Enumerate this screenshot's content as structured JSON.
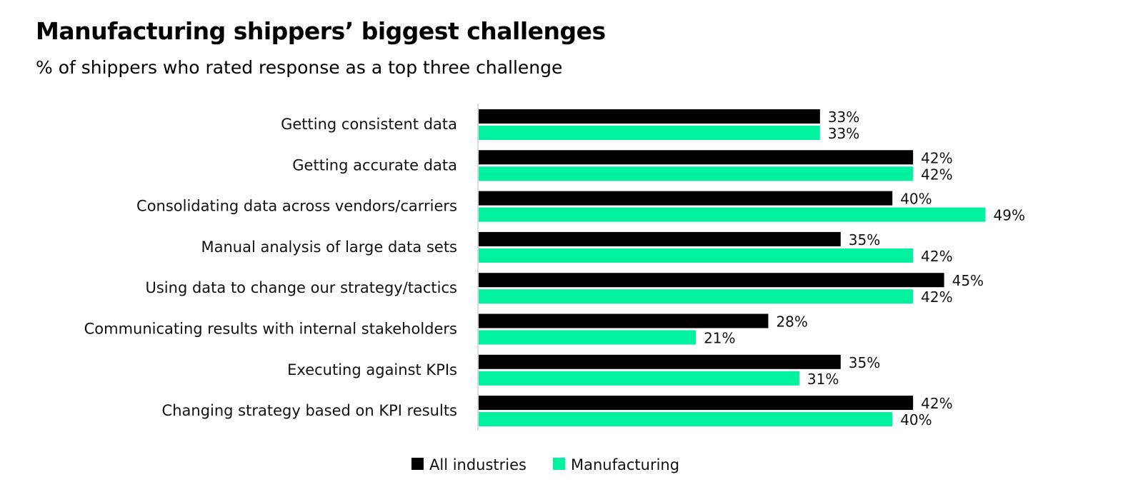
{
  "chart_data": {
    "type": "bar",
    "orientation": "horizontal",
    "title": "Manufacturing shippers’ biggest challenges",
    "subtitle": "% of shippers who rated response as a top three challenge",
    "categories": [
      "Getting consistent data",
      "Getting accurate data",
      "Consolidating data across vendors/carriers",
      "Manual analysis of large data sets",
      "Using data to change our strategy/tactics",
      "Communicating results with internal stakeholders",
      "Executing against KPIs",
      "Changing strategy based on KPI results"
    ],
    "series": [
      {
        "name": "All industries",
        "color": "#000000",
        "values": [
          33,
          42,
          40,
          35,
          45,
          28,
          35,
          42
        ]
      },
      {
        "name": "Manufacturing",
        "color": "#00F29E",
        "values": [
          33,
          42,
          49,
          42,
          42,
          21,
          31,
          40
        ]
      }
    ],
    "value_format": "%",
    "xlim": [
      0,
      55
    ],
    "grid": false,
    "legend": "bottom"
  }
}
